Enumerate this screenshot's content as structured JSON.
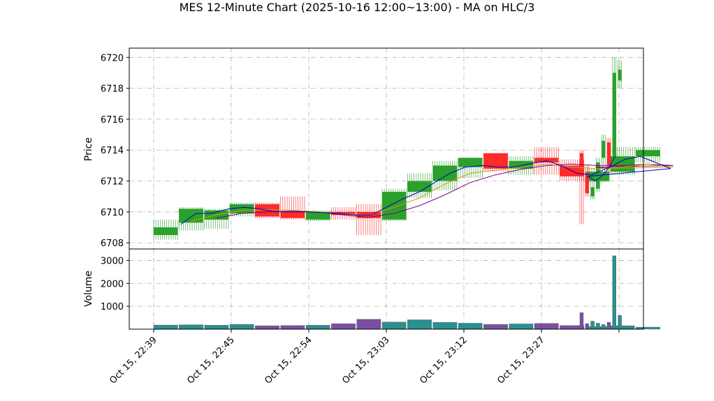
{
  "chart_data": {
    "type": "candlestick",
    "title": "MES 12-Minute Chart (2025-10-16 12:00~13:00) - MA on HLC/3",
    "price_axis": {
      "ylabel": "Price",
      "ylim": [
        6707.6,
        6720.6
      ],
      "ticks": [
        6708,
        6710,
        6712,
        6714,
        6716,
        6718,
        6720
      ]
    },
    "volume_axis": {
      "ylabel": "Volume",
      "ylim": [
        0,
        3500
      ],
      "ticks": [
        1000,
        2000,
        3000
      ]
    },
    "x_ticks": [
      "Oct 15, 22:39",
      "Oct 15, 22:45",
      "Oct 15, 22:54",
      "Oct 15, 23:03",
      "Oct 15, 23:12",
      "Oct 15, 23:27"
    ],
    "grid": true,
    "colors": {
      "up": "#2ca02c",
      "down": "#ff2a2a",
      "ma_fast": "#0000cc",
      "ma_mid": "#c8a000",
      "ma_slow": "#800080",
      "vol_up": "#2a8f8f",
      "vol_down": "#7a4fa0"
    },
    "candles": [
      {
        "t": 0,
        "o": 6708.5,
        "h": 6709.5,
        "l": 6708.2,
        "c": 6709.0,
        "v": 180
      },
      {
        "t": 1,
        "o": 6709.3,
        "h": 6710.3,
        "l": 6708.8,
        "c": 6710.2,
        "v": 190
      },
      {
        "t": 2,
        "o": 6709.5,
        "h": 6710.2,
        "l": 6708.9,
        "c": 6710.1,
        "v": 175
      },
      {
        "t": 3,
        "o": 6709.9,
        "h": 6710.6,
        "l": 6709.7,
        "c": 6710.5,
        "v": 210
      },
      {
        "t": 4,
        "o": 6710.5,
        "h": 6710.6,
        "l": 6709.6,
        "c": 6709.7,
        "v": 150
      },
      {
        "t": 5,
        "o": 6710.0,
        "h": 6711.0,
        "l": 6709.5,
        "c": 6709.6,
        "v": 160
      },
      {
        "t": 6,
        "o": 6709.5,
        "h": 6710.1,
        "l": 6709.4,
        "c": 6710.0,
        "v": 170
      },
      {
        "t": 7,
        "o": 6710.0,
        "h": 6710.3,
        "l": 6709.5,
        "c": 6709.8,
        "v": 240
      },
      {
        "t": 8,
        "o": 6710.0,
        "h": 6710.5,
        "l": 6708.5,
        "c": 6709.6,
        "v": 430
      },
      {
        "t": 9,
        "o": 6709.5,
        "h": 6711.5,
        "l": 6709.4,
        "c": 6711.3,
        "v": 310
      },
      {
        "t": 10,
        "o": 6711.3,
        "h": 6712.5,
        "l": 6710.9,
        "c": 6712.0,
        "v": 410
      },
      {
        "t": 11,
        "o": 6712.0,
        "h": 6713.3,
        "l": 6711.4,
        "c": 6713.0,
        "v": 300
      },
      {
        "t": 12,
        "o": 6712.9,
        "h": 6713.5,
        "l": 6712.2,
        "c": 6713.5,
        "v": 260
      },
      {
        "t": 13,
        "o": 6713.8,
        "h": 6713.8,
        "l": 6712.6,
        "c": 6712.8,
        "v": 210
      },
      {
        "t": 14,
        "o": 6712.8,
        "h": 6713.6,
        "l": 6712.4,
        "c": 6713.3,
        "v": 230
      },
      {
        "t": 15,
        "o": 6713.5,
        "h": 6714.2,
        "l": 6712.4,
        "c": 6713.2,
        "v": 250
      },
      {
        "t": 16,
        "o": 6713.0,
        "h": 6713.4,
        "l": 6712.0,
        "c": 6712.3,
        "v": 160
      },
      {
        "t": 17,
        "o": 6712.0,
        "h": 6712.8,
        "l": 6711.9,
        "c": 6712.6,
        "v": 110
      },
      {
        "t": 18,
        "o": 6712.6,
        "h": 6714.2,
        "l": 6712.4,
        "c": 6713.6,
        "v": 150
      },
      {
        "t": 19,
        "o": 6713.6,
        "h": 6714.2,
        "l": 6713.2,
        "c": 6714.0,
        "v": 90
      },
      {
        "t": 20,
        "o": 6713.8,
        "h": 6714.0,
        "l": 6709.2,
        "c": 6712.5,
        "v": 720
      },
      {
        "t": 21,
        "o": 6712.5,
        "h": 6713.0,
        "l": 6711.0,
        "c": 6711.2,
        "v": 240
      },
      {
        "t": 22,
        "o": 6711.0,
        "h": 6712.0,
        "l": 6710.8,
        "c": 6711.6,
        "v": 350
      },
      {
        "t": 23,
        "o": 6711.5,
        "h": 6713.5,
        "l": 6711.3,
        "c": 6713.2,
        "v": 260
      },
      {
        "t": 24,
        "o": 6713.5,
        "h": 6715.0,
        "l": 6713.0,
        "c": 6714.6,
        "v": 200
      },
      {
        "t": 25,
        "o": 6714.5,
        "h": 6714.8,
        "l": 6712.5,
        "c": 6713.0,
        "v": 300
      },
      {
        "t": 26,
        "o": 6713.0,
        "h": 6720.0,
        "l": 6712.8,
        "c": 6719.0,
        "v": 3200
      },
      {
        "t": 27,
        "o": 6718.5,
        "h": 6719.8,
        "l": 6718.0,
        "c": 6719.2,
        "v": 600
      }
    ],
    "ma_fast": [
      [
        0.6,
        6709.2
      ],
      [
        1.2,
        6709.9
      ],
      [
        1.8,
        6709.9
      ],
      [
        2.5,
        6710.2
      ],
      [
        3.1,
        6710.3
      ],
      [
        3.7,
        6710.2
      ],
      [
        4.3,
        6710.0
      ],
      [
        5.0,
        6710.0
      ],
      [
        5.6,
        6710.0
      ],
      [
        6.2,
        6709.95
      ],
      [
        6.9,
        6709.9
      ],
      [
        7.5,
        6709.8
      ],
      [
        8.1,
        6709.8
      ],
      [
        8.7,
        6710.3
      ],
      [
        9.3,
        6710.8
      ],
      [
        10.0,
        6711.3
      ],
      [
        10.6,
        6711.9
      ],
      [
        11.2,
        6712.5
      ],
      [
        11.8,
        6712.9
      ],
      [
        12.5,
        6713.0
      ],
      [
        13.1,
        6712.9
      ],
      [
        13.7,
        6712.9
      ],
      [
        14.3,
        6713.1
      ],
      [
        15.0,
        6713.3
      ],
      [
        15.6,
        6713.0
      ],
      [
        16.2,
        6712.5
      ],
      [
        16.8,
        6712.4
      ],
      [
        17.5,
        6712.9
      ],
      [
        18.1,
        6713.4
      ],
      [
        18.7,
        6713.6
      ],
      [
        19.3,
        6713.2
      ],
      [
        19.9,
        6712.8
      ],
      [
        20.4,
        6712.3
      ],
      [
        20.8,
        6712.0
      ],
      [
        21.2,
        6712.4
      ],
      [
        21.5,
        6712.9
      ],
      [
        21.8,
        6713.6
      ]
    ],
    "ma_mid": [
      [
        1.0,
        6709.4
      ],
      [
        2.0,
        6709.8
      ],
      [
        3.0,
        6710.1
      ],
      [
        4.0,
        6710.15
      ],
      [
        5.0,
        6710.1
      ],
      [
        6.0,
        6710.0
      ],
      [
        7.0,
        6709.9
      ],
      [
        8.0,
        6709.8
      ],
      [
        9.0,
        6710.3
      ],
      [
        10.0,
        6710.9
      ],
      [
        11.0,
        6711.8
      ],
      [
        12.0,
        6712.5
      ],
      [
        13.0,
        6712.7
      ],
      [
        14.0,
        6712.9
      ],
      [
        15.0,
        6713.1
      ],
      [
        16.0,
        6712.9
      ],
      [
        17.0,
        6712.8
      ],
      [
        18.0,
        6712.9
      ],
      [
        19.0,
        6713.1
      ],
      [
        20.0,
        6712.9
      ],
      [
        20.8,
        6712.8
      ],
      [
        21.3,
        6712.8
      ],
      [
        21.8,
        6712.9
      ]
    ],
    "ma_slow": [
      [
        2.0,
        6709.6
      ],
      [
        3.0,
        6709.9
      ],
      [
        4.0,
        6710.0
      ],
      [
        5.0,
        6710.05
      ],
      [
        6.0,
        6710.0
      ],
      [
        7.0,
        6709.8
      ],
      [
        8.0,
        6709.65
      ],
      [
        9.0,
        6709.9
      ],
      [
        10.0,
        6710.4
      ],
      [
        11.0,
        6711.1
      ],
      [
        12.0,
        6711.9
      ],
      [
        13.0,
        6712.4
      ],
      [
        14.0,
        6712.75
      ],
      [
        15.0,
        6713.0
      ],
      [
        16.0,
        6713.1
      ],
      [
        17.0,
        6713.0
      ],
      [
        18.0,
        6713.0
      ],
      [
        19.0,
        6713.1
      ],
      [
        20.0,
        6713.0
      ],
      [
        20.8,
        6712.9
      ],
      [
        21.3,
        6712.85
      ],
      [
        21.8,
        6712.9
      ]
    ]
  }
}
